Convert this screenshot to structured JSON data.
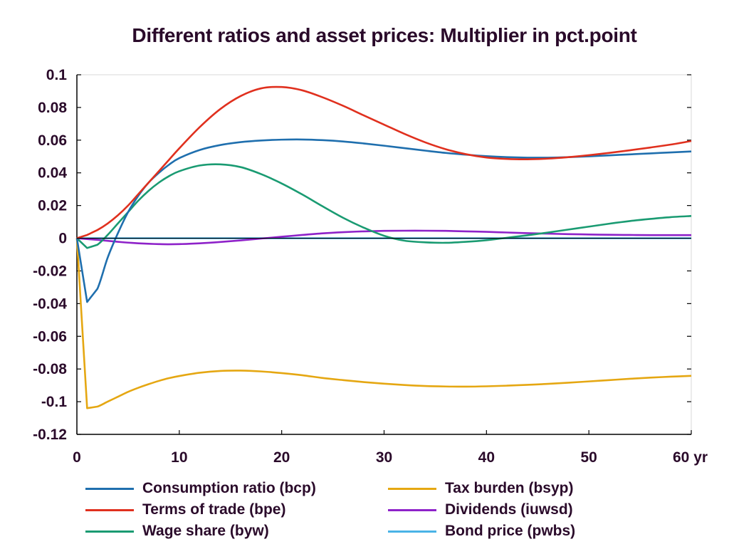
{
  "chart_data": {
    "type": "line",
    "title": "Different ratios and asset prices: Multiplier in pct.point",
    "xlabel": "",
    "ylabel": "",
    "x_unit_label": "yr",
    "xlim": [
      0,
      60
    ],
    "ylim": [
      -0.12,
      0.1
    ],
    "x_ticks": [
      "0",
      "10",
      "20",
      "30",
      "40",
      "50",
      "60 yr"
    ],
    "y_ticks": [
      "0.1",
      "0.08",
      "0.06",
      "0.04",
      "0.02",
      "0",
      "-0.02",
      "-0.04",
      "-0.06",
      "-0.08",
      "-0.1",
      "-0.12"
    ],
    "grid": false,
    "legend_position": "bottom",
    "x": [
      0,
      1,
      2,
      3,
      4,
      5,
      6,
      7,
      8,
      9,
      10,
      12,
      14,
      16,
      18,
      20,
      22,
      24,
      26,
      28,
      30,
      32,
      34,
      36,
      38,
      40,
      42,
      44,
      46,
      48,
      50,
      52,
      54,
      56,
      58,
      60
    ],
    "series": [
      {
        "name": "Consumption ratio (bcp)",
        "color": "#1f6fae",
        "values": [
          0,
          -0.039,
          -0.031,
          -0.012,
          0.003,
          0.016,
          0.026,
          0.034,
          0.04,
          0.045,
          0.049,
          0.054,
          0.057,
          0.0588,
          0.0598,
          0.0603,
          0.0604,
          0.06,
          0.0592,
          0.058,
          0.0566,
          0.0551,
          0.0536,
          0.0522,
          0.0511,
          0.0502,
          0.0496,
          0.0493,
          0.0493,
          0.0496,
          0.0501,
          0.0507,
          0.0513,
          0.0519,
          0.0525,
          0.0531
        ]
      },
      {
        "name": "Terms of trade (bpe)",
        "color": "#e0301e",
        "values": [
          0,
          0.002,
          0.005,
          0.009,
          0.014,
          0.02,
          0.027,
          0.034,
          0.041,
          0.048,
          0.055,
          0.068,
          0.079,
          0.087,
          0.0917,
          0.0925,
          0.0905,
          0.0862,
          0.081,
          0.0752,
          0.0695,
          0.0638,
          0.0587,
          0.0545,
          0.0514,
          0.0494,
          0.0485,
          0.0483,
          0.0487,
          0.0496,
          0.0508,
          0.0522,
          0.0538,
          0.0555,
          0.0573,
          0.0595
        ]
      },
      {
        "name": "Wage share (byw)",
        "color": "#1a9b72",
        "values": [
          0,
          -0.006,
          -0.004,
          0.002,
          0.009,
          0.016,
          0.023,
          0.029,
          0.034,
          0.038,
          0.041,
          0.0445,
          0.0452,
          0.0435,
          0.0392,
          0.0335,
          0.0268,
          0.0195,
          0.0125,
          0.0065,
          0.0015,
          -0.0015,
          -0.0025,
          -0.0028,
          -0.0022,
          -0.0012,
          0.0003,
          0.0018,
          0.0035,
          0.0053,
          0.0071,
          0.0089,
          0.0105,
          0.0118,
          0.0129,
          0.0136
        ]
      },
      {
        "name": "Tax burden (bsyp)",
        "color": "#e5a712",
        "values": [
          0,
          -0.104,
          -0.103,
          -0.1,
          -0.097,
          -0.094,
          -0.0915,
          -0.0893,
          -0.0873,
          -0.0856,
          -0.0843,
          -0.0823,
          -0.0812,
          -0.081,
          -0.0815,
          -0.0825,
          -0.0838,
          -0.0855,
          -0.0868,
          -0.088,
          -0.089,
          -0.0898,
          -0.0904,
          -0.0907,
          -0.0908,
          -0.0906,
          -0.0902,
          -0.0897,
          -0.0891,
          -0.0884,
          -0.0876,
          -0.0868,
          -0.086,
          -0.0853,
          -0.0847,
          -0.0842
        ]
      },
      {
        "name": "Dividends (iuwsd)",
        "color": "#8e22c9",
        "values": [
          0,
          -0.0005,
          -0.001,
          -0.0016,
          -0.0022,
          -0.0027,
          -0.0031,
          -0.0034,
          -0.0036,
          -0.0037,
          -0.0036,
          -0.0031,
          -0.0023,
          -0.0013,
          -0.0002,
          0.0009,
          0.002,
          0.003,
          0.0037,
          0.0042,
          0.0045,
          0.0046,
          0.0046,
          0.0045,
          0.0042,
          0.0039,
          0.0035,
          0.0031,
          0.0028,
          0.0025,
          0.0023,
          0.0021,
          0.002,
          0.0019,
          0.0019,
          0.0019
        ]
      },
      {
        "name": "Bond price (pwbs)",
        "color": "#4ab3e6",
        "values": [
          0,
          0,
          0,
          0,
          0,
          0,
          0,
          0,
          0,
          0,
          0,
          0,
          0,
          0,
          0,
          0,
          0,
          0,
          0,
          0,
          0,
          0,
          0,
          0,
          0,
          0,
          0,
          0,
          0,
          0,
          0,
          0,
          0,
          0,
          0,
          0
        ]
      }
    ]
  }
}
